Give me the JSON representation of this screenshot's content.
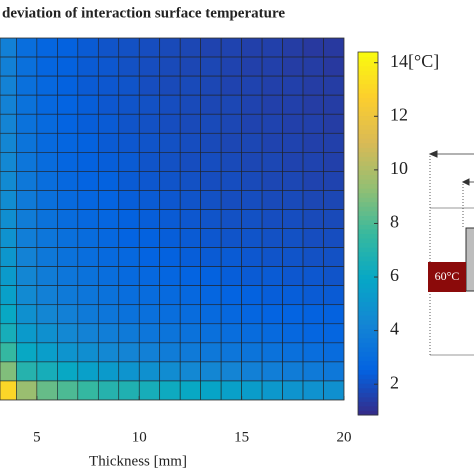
{
  "chart_data": {
    "type": "heatmap",
    "title": "deviation of interaction surface temperature",
    "xlabel": "Thickness [mm]",
    "x": [
      3.5,
      4.5,
      5.5,
      6.5,
      7.5,
      8.5,
      9.5,
      10.5,
      11.5,
      12.5,
      13.5,
      14.5,
      15.5,
      16.5,
      17.5,
      18.5,
      19.5
    ],
    "xlim": [
      3.2,
      20
    ],
    "xticks": [
      5,
      10,
      15,
      20
    ],
    "z": [
      [
        4,
        3.1,
        2.7,
        2.5,
        2.3,
        2.1,
        2,
        1.9,
        1.8,
        1.7,
        1.6,
        1.6,
        1.5,
        1.5,
        1.4,
        1.3,
        1.3
      ],
      [
        4,
        3.2,
        2.7,
        2.5,
        2.3,
        2.2,
        2,
        1.9,
        1.8,
        1.7,
        1.7,
        1.6,
        1.5,
        1.5,
        1.4,
        1.4,
        1.3
      ],
      [
        4.1,
        3.2,
        2.8,
        2.5,
        2.3,
        2.2,
        2.1,
        1.9,
        1.8,
        1.8,
        1.7,
        1.6,
        1.6,
        1.5,
        1.5,
        1.4,
        1.4
      ],
      [
        4.1,
        3.3,
        2.8,
        2.6,
        2.4,
        2.2,
        2.1,
        2,
        1.9,
        1.8,
        1.7,
        1.7,
        1.6,
        1.5,
        1.5,
        1.4,
        1.4
      ],
      [
        4.2,
        3.3,
        2.9,
        2.6,
        2.4,
        2.3,
        2.1,
        2,
        1.9,
        1.8,
        1.8,
        1.7,
        1.6,
        1.6,
        1.5,
        1.5,
        1.4
      ],
      [
        4.3,
        3.4,
        2.9,
        2.7,
        2.5,
        2.3,
        2.2,
        2.1,
        2,
        1.9,
        1.8,
        1.7,
        1.7,
        1.6,
        1.6,
        1.5,
        1.5
      ],
      [
        4.4,
        3.5,
        3,
        2.7,
        2.5,
        2.4,
        2.3,
        2.1,
        2,
        1.9,
        1.9,
        1.8,
        1.7,
        1.7,
        1.6,
        1.6,
        1.5
      ],
      [
        4.5,
        3.6,
        3.1,
        2.8,
        2.6,
        2.5,
        2.3,
        2.2,
        2.1,
        2,
        1.9,
        1.9,
        1.8,
        1.7,
        1.7,
        1.6,
        1.6
      ],
      [
        4.6,
        3.7,
        3.2,
        2.9,
        2.7,
        2.6,
        2.4,
        2.3,
        2.2,
        2.1,
        2,
        1.9,
        1.9,
        1.8,
        1.8,
        1.7,
        1.7
      ],
      [
        4.7,
        3.8,
        3.3,
        3,
        2.8,
        2.7,
        2.5,
        2.4,
        2.3,
        2.2,
        2.1,
        2,
        2,
        1.9,
        1.9,
        1.8,
        1.8
      ],
      [
        4.9,
        3.9,
        3.5,
        3.2,
        3,
        2.8,
        2.6,
        2.5,
        2.4,
        2.3,
        2.2,
        2.1,
        2.1,
        2,
        2,
        1.9,
        1.9
      ],
      [
        5.1,
        4.1,
        3.6,
        3.3,
        3.1,
        2.9,
        2.8,
        2.6,
        2.5,
        2.4,
        2.3,
        2.3,
        2.2,
        2.1,
        2.1,
        2,
        2
      ],
      [
        5.3,
        4.3,
        3.8,
        3.5,
        3.3,
        3.1,
        2.9,
        2.8,
        2.7,
        2.6,
        2.5,
        2.4,
        2.3,
        2.3,
        2.2,
        2.2,
        2.1
      ],
      [
        5.6,
        4.5,
        4,
        3.7,
        3.5,
        3.3,
        3.1,
        3,
        2.9,
        2.8,
        2.7,
        2.6,
        2.5,
        2.4,
        2.4,
        2.3,
        2.3
      ],
      [
        6,
        4.8,
        4.3,
        4,
        3.7,
        3.5,
        3.3,
        3.2,
        3.1,
        3,
        2.9,
        2.8,
        2.7,
        2.6,
        2.6,
        2.5,
        2.5
      ],
      [
        6.5,
        5.3,
        4.8,
        4.4,
        4.1,
        3.9,
        3.7,
        3.5,
        3.4,
        3.3,
        3.2,
        3.1,
        3,
        2.9,
        2.8,
        2.7,
        2.7
      ],
      [
        7.5,
        6,
        5.5,
        5,
        4.7,
        4.4,
        4.2,
        4,
        3.8,
        3.7,
        3.6,
        3.5,
        3.4,
        3.3,
        3.2,
        3.1,
        3
      ],
      [
        9,
        7,
        6.5,
        6,
        5.6,
        5.3,
        5,
        4.8,
        4.6,
        4.4,
        4.3,
        4.2,
        4,
        3.9,
        3.8,
        3.7,
        3.6
      ],
      [
        13,
        9.5,
        8.5,
        8,
        7.5,
        7,
        6.8,
        6.5,
        6.2,
        6,
        5.8,
        5.6,
        5.4,
        5.2,
        5,
        4.9,
        4.8
      ]
    ],
    "colormap": [
      "#352a87",
      "#0363e1",
      "#1485d4",
      "#06a7c6",
      "#38b99e",
      "#92bf73",
      "#d9ba56",
      "#fcce2e",
      "#f9fb0e"
    ],
    "clim": [
      0.85,
      14.4
    ],
    "cticks": [
      2,
      4,
      6,
      8,
      10,
      12,
      {
        "value": 14,
        "label": "14[°C]"
      }
    ],
    "annotation": "60°C"
  }
}
